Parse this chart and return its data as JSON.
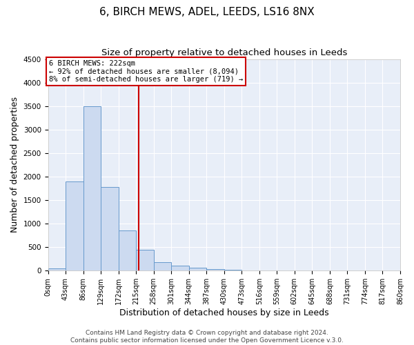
{
  "title": "6, BIRCH MEWS, ADEL, LEEDS, LS16 8NX",
  "subtitle": "Size of property relative to detached houses in Leeds",
  "xlabel": "Distribution of detached houses by size in Leeds",
  "ylabel": "Number of detached properties",
  "bin_edges": [
    0,
    43,
    86,
    129,
    172,
    215,
    258,
    301,
    344,
    387,
    430,
    473,
    516,
    559,
    602,
    645,
    688,
    731,
    774,
    817,
    860
  ],
  "bin_counts": [
    50,
    1900,
    3500,
    1775,
    850,
    450,
    175,
    115,
    70,
    35,
    15,
    0,
    0,
    0,
    0,
    0,
    0,
    0,
    0,
    0
  ],
  "bar_facecolor": "#ccdaf0",
  "bar_edgecolor": "#6699cc",
  "vline_x": 222,
  "vline_color": "#cc0000",
  "annotation_line1": "6 BIRCH MEWS: 222sqm",
  "annotation_line2": "← 92% of detached houses are smaller (8,094)",
  "annotation_line3": "8% of semi-detached houses are larger (719) →",
  "annotation_box_edgecolor": "#cc0000",
  "ylim": [
    0,
    4500
  ],
  "xlim": [
    0,
    860
  ],
  "tick_labels": [
    "0sqm",
    "43sqm",
    "86sqm",
    "129sqm",
    "172sqm",
    "215sqm",
    "258sqm",
    "301sqm",
    "344sqm",
    "387sqm",
    "430sqm",
    "473sqm",
    "516sqm",
    "559sqm",
    "602sqm",
    "645sqm",
    "688sqm",
    "731sqm",
    "774sqm",
    "817sqm",
    "860sqm"
  ],
  "footer_line1": "Contains HM Land Registry data © Crown copyright and database right 2024.",
  "footer_line2": "Contains public sector information licensed under the Open Government Licence v.3.0.",
  "background_color": "#ffffff",
  "plot_bg_color": "#e8eef8",
  "grid_color": "#ffffff",
  "title_fontsize": 11,
  "subtitle_fontsize": 9.5,
  "axis_label_fontsize": 9,
  "tick_fontsize": 7,
  "footer_fontsize": 6.5
}
